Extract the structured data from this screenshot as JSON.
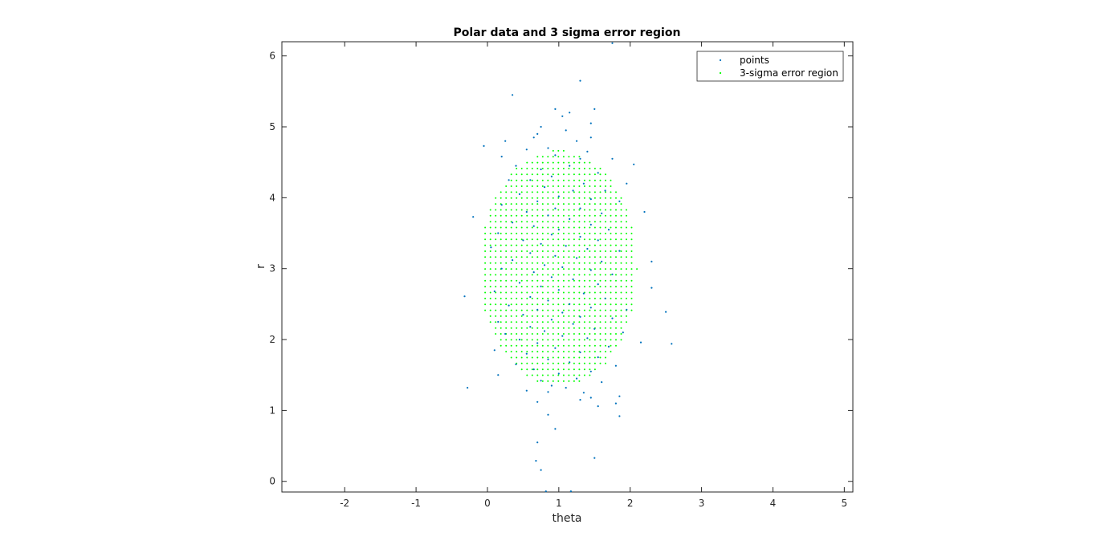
{
  "chart_data": {
    "type": "scatter",
    "title": "Polar data and 3 sigma error region",
    "xlabel": "theta",
    "ylabel": "r",
    "xlim": [
      -2.88,
      5.12
    ],
    "ylim": [
      -0.15,
      6.2
    ],
    "xticks": [
      -2,
      -1,
      0,
      1,
      2,
      3,
      4,
      5
    ],
    "yticks": [
      0,
      1,
      2,
      3,
      4,
      5,
      6
    ],
    "xtick_labels": [
      "-2",
      "-1",
      "0",
      "1",
      "2",
      "3",
      "4",
      "5"
    ],
    "ytick_labels": [
      "0",
      "1",
      "2",
      "3",
      "4",
      "5",
      "6"
    ],
    "grid": false,
    "legend_position": "top-right",
    "series": [
      {
        "name": "points",
        "color": "#0072bd",
        "points": [
          [
            0.35,
            5.45
          ],
          [
            1.3,
            5.65
          ],
          [
            1.75,
            6.18
          ],
          [
            0.95,
            5.25
          ],
          [
            1.15,
            5.2
          ],
          [
            1.5,
            5.25
          ],
          [
            1.05,
            5.15
          ],
          [
            1.45,
            5.05
          ],
          [
            0.75,
            5.0
          ],
          [
            0.7,
            4.9
          ],
          [
            1.1,
            4.95
          ],
          [
            0.25,
            4.8
          ],
          [
            1.25,
            4.8
          ],
          [
            1.45,
            4.85
          ],
          [
            0.65,
            4.85
          ],
          [
            -0.05,
            4.73
          ],
          [
            0.55,
            4.68
          ],
          [
            0.85,
            4.7
          ],
          [
            1.4,
            4.65
          ],
          [
            0.2,
            4.58
          ],
          [
            1.75,
            4.55
          ],
          [
            2.05,
            4.47
          ],
          [
            0.95,
            4.6
          ],
          [
            1.3,
            4.55
          ],
          [
            1.95,
            4.2
          ],
          [
            0.4,
            4.45
          ],
          [
            0.75,
            4.4
          ],
          [
            1.15,
            4.45
          ],
          [
            1.55,
            4.35
          ],
          [
            0.9,
            4.3
          ],
          [
            0.3,
            4.25
          ],
          [
            0.6,
            4.25
          ],
          [
            1.35,
            4.2
          ],
          [
            0.8,
            4.15
          ],
          [
            1.2,
            4.1
          ],
          [
            1.65,
            4.1
          ],
          [
            0.45,
            4.05
          ],
          [
            1.0,
            4.02
          ],
          [
            1.45,
            3.98
          ],
          [
            0.7,
            3.95
          ],
          [
            1.85,
            3.95
          ],
          [
            0.2,
            3.9
          ],
          [
            0.95,
            3.85
          ],
          [
            1.3,
            3.85
          ],
          [
            0.55,
            3.8
          ],
          [
            1.6,
            3.78
          ],
          [
            2.2,
            3.8
          ],
          [
            -0.2,
            3.73
          ],
          [
            0.85,
            3.75
          ],
          [
            1.15,
            3.7
          ],
          [
            0.35,
            3.65
          ],
          [
            1.45,
            3.62
          ],
          [
            0.65,
            3.6
          ],
          [
            1.0,
            3.55
          ],
          [
            1.7,
            3.55
          ],
          [
            0.15,
            3.5
          ],
          [
            0.9,
            3.48
          ],
          [
            1.3,
            3.45
          ],
          [
            0.5,
            3.4
          ],
          [
            1.55,
            3.4
          ],
          [
            0.75,
            3.35
          ],
          [
            1.1,
            3.32
          ],
          [
            0.05,
            3.3
          ],
          [
            1.4,
            3.28
          ],
          [
            0.6,
            3.22
          ],
          [
            1.85,
            3.25
          ],
          [
            0.95,
            3.18
          ],
          [
            1.25,
            3.15
          ],
          [
            0.35,
            3.12
          ],
          [
            1.6,
            3.1
          ],
          [
            2.3,
            3.1
          ],
          [
            0.8,
            3.05
          ],
          [
            1.05,
            3.02
          ],
          [
            0.2,
            3.0
          ],
          [
            1.45,
            2.98
          ],
          [
            0.65,
            2.95
          ],
          [
            1.75,
            2.92
          ],
          [
            0.9,
            2.88
          ],
          [
            1.2,
            2.85
          ],
          [
            0.45,
            2.8
          ],
          [
            1.55,
            2.78
          ],
          [
            2.3,
            2.73
          ],
          [
            0.75,
            2.75
          ],
          [
            1.0,
            2.7
          ],
          [
            0.1,
            2.68
          ],
          [
            1.35,
            2.65
          ],
          [
            -0.32,
            2.61
          ],
          [
            0.6,
            2.6
          ],
          [
            1.65,
            2.58
          ],
          [
            0.85,
            2.55
          ],
          [
            1.15,
            2.5
          ],
          [
            0.3,
            2.48
          ],
          [
            1.45,
            2.45
          ],
          [
            1.95,
            2.42
          ],
          [
            0.7,
            2.42
          ],
          [
            1.05,
            2.38
          ],
          [
            2.5,
            2.39
          ],
          [
            0.5,
            2.35
          ],
          [
            1.3,
            2.32
          ],
          [
            1.75,
            2.3
          ],
          [
            0.9,
            2.28
          ],
          [
            0.15,
            2.25
          ],
          [
            1.2,
            2.22
          ],
          [
            0.6,
            2.18
          ],
          [
            1.5,
            2.15
          ],
          [
            1.9,
            2.1
          ],
          [
            0.8,
            2.12
          ],
          [
            0.25,
            2.08
          ],
          [
            1.05,
            2.05
          ],
          [
            1.4,
            2.02
          ],
          [
            0.45,
            2.0
          ],
          [
            2.15,
            1.96
          ],
          [
            2.58,
            1.94
          ],
          [
            0.7,
            1.95
          ],
          [
            1.7,
            1.9
          ],
          [
            0.95,
            1.88
          ],
          [
            0.1,
            1.85
          ],
          [
            1.3,
            1.82
          ],
          [
            0.55,
            1.8
          ],
          [
            1.55,
            1.75
          ],
          [
            0.85,
            1.72
          ],
          [
            1.15,
            1.68
          ],
          [
            1.8,
            1.63
          ],
          [
            0.4,
            1.65
          ],
          [
            0.65,
            1.58
          ],
          [
            1.45,
            1.55
          ],
          [
            1.0,
            1.52
          ],
          [
            0.15,
            1.5
          ],
          [
            1.25,
            1.45
          ],
          [
            0.75,
            1.42
          ],
          [
            1.6,
            1.4
          ],
          [
            0.9,
            1.35
          ],
          [
            1.1,
            1.32
          ],
          [
            -0.28,
            1.32
          ],
          [
            0.55,
            1.28
          ],
          [
            1.35,
            1.25
          ],
          [
            0.85,
            1.26
          ],
          [
            1.85,
            1.2
          ],
          [
            1.45,
            1.18
          ],
          [
            1.3,
            1.15
          ],
          [
            0.7,
            1.12
          ],
          [
            1.8,
            1.1
          ],
          [
            1.55,
            1.06
          ],
          [
            0.85,
            0.94
          ],
          [
            1.85,
            0.92
          ],
          [
            0.95,
            0.74
          ],
          [
            0.7,
            0.55
          ],
          [
            1.5,
            0.33
          ],
          [
            0.68,
            0.29
          ],
          [
            0.75,
            0.16
          ],
          [
            0.82,
            -0.14
          ],
          [
            1.17,
            -0.14
          ]
        ]
      },
      {
        "name": "3-sigma error region",
        "color": "#00ff00",
        "region": {
          "center": [
            0.995,
            3.0
          ],
          "x_half_width": 1.1,
          "y_half_height": 1.67,
          "x_step": 0.0733,
          "y_step": 0.0833
        }
      }
    ]
  }
}
